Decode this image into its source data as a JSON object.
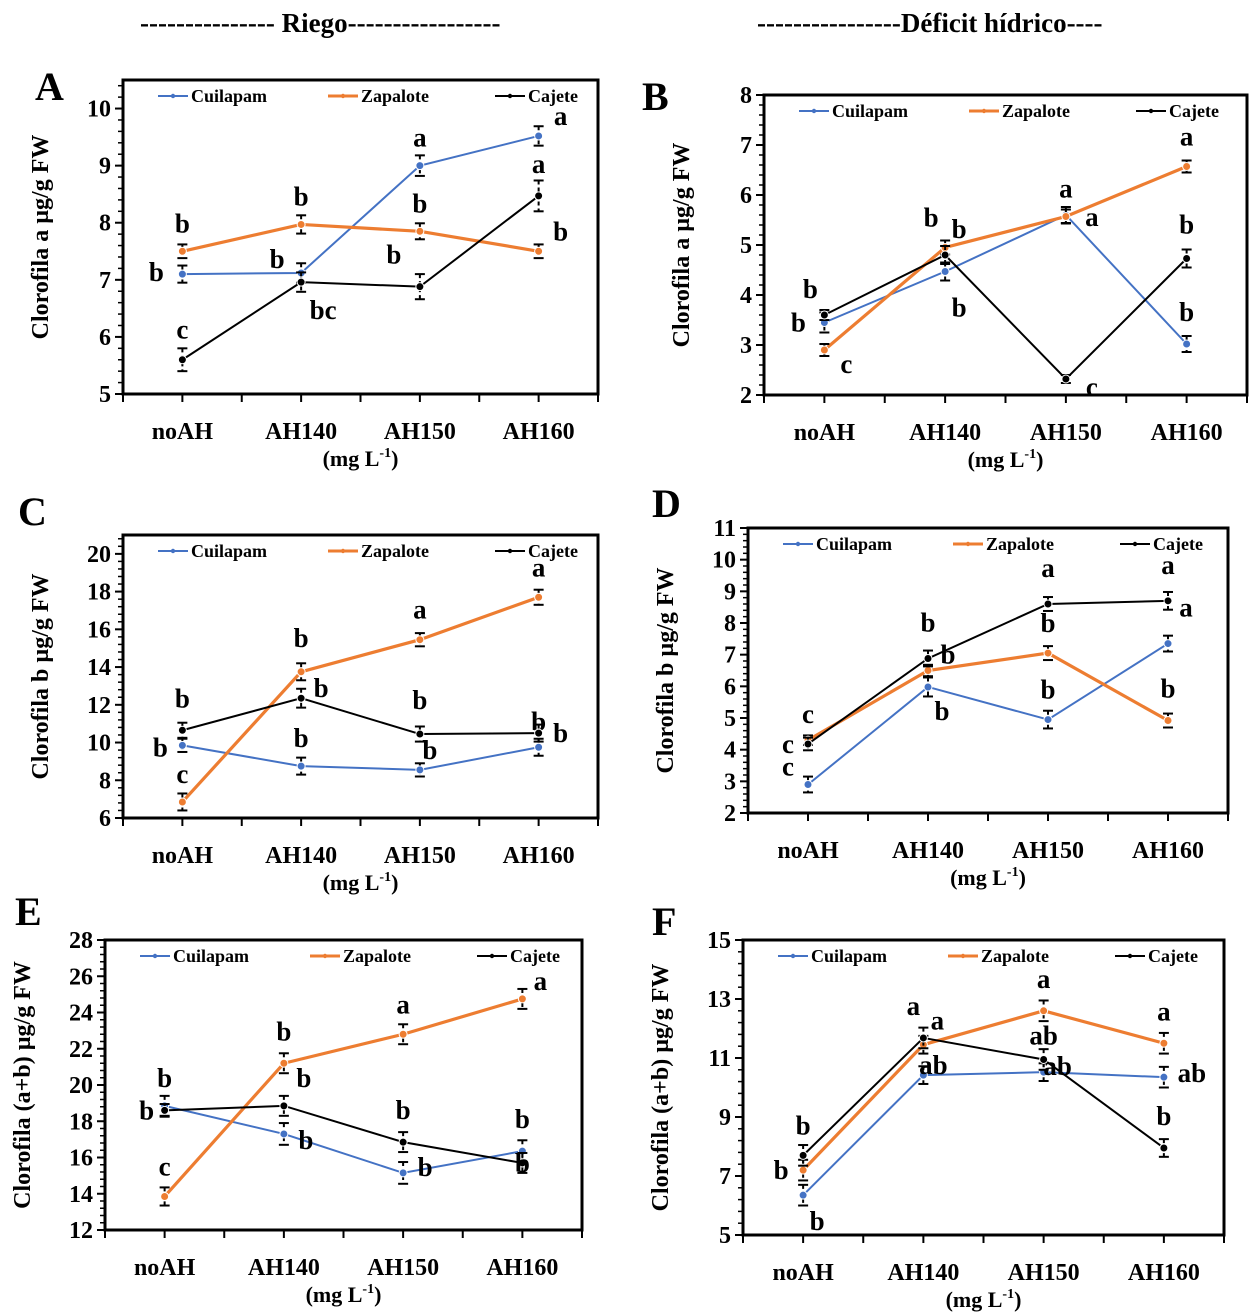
{
  "section_titles": {
    "left": "--------------- Riego-----------------",
    "right": "----------------Déficit hídrico----"
  },
  "colors": {
    "Cuilapam": "#4472C4",
    "Zapalote": "#ED7D31",
    "Cajete": "#000000"
  },
  "chart_data": [
    {
      "panel": "A",
      "type": "line",
      "group": "Riego",
      "ylabel": "Clorofila a µg/g FW",
      "xlabel": "(mg L-1)",
      "categories": [
        "noAH",
        "AH140",
        "AH150",
        "AH160"
      ],
      "ylim": [
        5,
        10.5
      ],
      "yticks": [
        5,
        6,
        7,
        8,
        9,
        10
      ],
      "legend": [
        "Cuilapam",
        "Zapalote",
        "Cajete"
      ],
      "legend_position": "top",
      "series": [
        {
          "name": "Cuilapam",
          "values": [
            7.1,
            7.12,
            9.0,
            9.52
          ],
          "errors": [
            0.15,
            0.17,
            0.18,
            0.17
          ],
          "letters": [
            "b",
            "b",
            "a",
            "a"
          ]
        },
        {
          "name": "Zapalote",
          "values": [
            7.5,
            7.97,
            7.85,
            7.5
          ],
          "errors": [
            0.12,
            0.16,
            0.14,
            0.12
          ],
          "letters": [
            "b",
            "b",
            "b",
            "b"
          ]
        },
        {
          "name": "Cajete",
          "values": [
            5.6,
            6.96,
            6.88,
            8.47
          ],
          "errors": [
            0.2,
            0.17,
            0.22,
            0.27
          ],
          "letters": [
            "c",
            "bc",
            "b",
            "a"
          ]
        }
      ]
    },
    {
      "panel": "B",
      "type": "line",
      "group": "Déficit hídrico",
      "ylabel": "Clorofila a µg/g FW",
      "xlabel": "(mg L-1)",
      "categories": [
        "noAH",
        "AH140",
        "AH150",
        "AH160"
      ],
      "ylim": [
        2,
        8
      ],
      "yticks": [
        2,
        3,
        4,
        5,
        6,
        7,
        8
      ],
      "legend": [
        "Cuilapam",
        "Zapalote",
        "Cajete"
      ],
      "legend_position": "top",
      "series": [
        {
          "name": "Cuilapam",
          "values": [
            3.45,
            4.47,
            5.6,
            3.02
          ],
          "errors": [
            0.2,
            0.18,
            0.16,
            0.16
          ],
          "letters": [
            "b",
            "b",
            "a",
            "b"
          ]
        },
        {
          "name": "Zapalote",
          "values": [
            2.9,
            4.95,
            5.57,
            6.57
          ],
          "errors": [
            0.12,
            0.14,
            0.14,
            0.12
          ],
          "letters": [
            "c",
            "b",
            "a",
            "a"
          ]
        },
        {
          "name": "Cajete",
          "values": [
            3.6,
            4.8,
            2.32,
            4.73
          ],
          "errors": [
            0.1,
            0.18,
            0.08,
            0.18
          ],
          "letters": [
            "b",
            "b",
            "c",
            "b"
          ]
        }
      ]
    },
    {
      "panel": "C",
      "type": "line",
      "group": "Riego",
      "ylabel": "Clorofila b µg/g FW",
      "xlabel": "(mg L-1)",
      "categories": [
        "noAH",
        "AH140",
        "AH150",
        "AH160"
      ],
      "ylim": [
        6,
        21
      ],
      "yticks": [
        6,
        8,
        10,
        12,
        14,
        16,
        18,
        20
      ],
      "legend": [
        "Cuilapam",
        "Zapalote",
        "Cajete"
      ],
      "legend_position": "top",
      "series": [
        {
          "name": "Cuilapam",
          "values": [
            9.85,
            8.75,
            8.55,
            9.75
          ],
          "errors": [
            0.35,
            0.45,
            0.35,
            0.45
          ],
          "letters": [
            "b",
            "b",
            "b",
            "b"
          ]
        },
        {
          "name": "Zapalote",
          "values": [
            6.85,
            13.75,
            15.45,
            17.7
          ],
          "errors": [
            0.45,
            0.45,
            0.35,
            0.4
          ],
          "letters": [
            "c",
            "b",
            "a",
            "a"
          ]
        },
        {
          "name": "Cajete",
          "values": [
            10.65,
            12.35,
            10.45,
            10.5
          ],
          "errors": [
            0.4,
            0.5,
            0.4,
            0.45
          ],
          "letters": [
            "b",
            "b",
            "b",
            "b"
          ]
        }
      ]
    },
    {
      "panel": "D",
      "type": "line",
      "group": "Déficit hídrico",
      "ylabel": "Clorofila b µg/g FW",
      "xlabel": "(mg L-1)",
      "categories": [
        "noAH",
        "AH140",
        "AH150",
        "AH160"
      ],
      "ylim": [
        2,
        11
      ],
      "yticks": [
        2,
        3,
        4,
        5,
        6,
        7,
        8,
        9,
        10,
        11
      ],
      "legend": [
        "Cuilapam",
        "Zapalote",
        "Cajete"
      ],
      "legend_position": "top",
      "series": [
        {
          "name": "Cuilapam",
          "values": [
            2.9,
            5.98,
            4.95,
            7.35
          ],
          "errors": [
            0.25,
            0.3,
            0.28,
            0.25
          ],
          "letters": [
            "c",
            "b",
            "b",
            "a"
          ]
        },
        {
          "name": "Zapalote",
          "values": [
            4.3,
            6.5,
            7.05,
            4.92
          ],
          "errors": [
            0.15,
            0.18,
            0.22,
            0.22
          ],
          "letters": [
            "c",
            "b",
            "b",
            "b"
          ]
        },
        {
          "name": "Cajete",
          "values": [
            4.18,
            6.88,
            8.6,
            8.7
          ],
          "errors": [
            0.2,
            0.25,
            0.22,
            0.28
          ],
          "letters": [
            "c",
            "b",
            "a",
            "a"
          ]
        }
      ]
    },
    {
      "panel": "E",
      "type": "line",
      "group": "Riego",
      "ylabel": "Clorofila (a+b) µg/g FW",
      "xlabel": "(mg L-1)",
      "categories": [
        "noAH",
        "AH140",
        "AH150",
        "AH160"
      ],
      "ylim": [
        12,
        28
      ],
      "yticks": [
        12,
        14,
        16,
        18,
        20,
        22,
        24,
        26,
        28
      ],
      "legend": [
        "Cuilapam",
        "Zapalote",
        "Cajete"
      ],
      "legend_position": "top",
      "series": [
        {
          "name": "Cuilapam",
          "values": [
            18.85,
            17.3,
            15.15,
            16.35
          ],
          "errors": [
            0.55,
            0.6,
            0.6,
            0.6
          ],
          "letters": [
            "b",
            "b",
            "b",
            "b"
          ]
        },
        {
          "name": "Zapalote",
          "values": [
            13.85,
            21.2,
            22.8,
            24.75
          ],
          "errors": [
            0.5,
            0.55,
            0.55,
            0.55
          ],
          "letters": [
            "c",
            "b",
            "a",
            "a"
          ]
        },
        {
          "name": "Cajete",
          "values": [
            18.6,
            18.85,
            16.85,
            15.7
          ],
          "errors": [
            0.35,
            0.55,
            0.55,
            0.55
          ],
          "letters": [
            "b",
            "b",
            "b",
            "b"
          ]
        }
      ]
    },
    {
      "panel": "F",
      "type": "line",
      "group": "Déficit hídrico",
      "ylabel": "Clorofila (a+b)  µg/g FW",
      "xlabel": "(mg L-1)",
      "categories": [
        "noAH",
        "AH140",
        "AH150",
        "AH160"
      ],
      "ylim": [
        5,
        15
      ],
      "yticks": [
        5,
        7,
        9,
        11,
        13,
        15
      ],
      "legend": [
        "Cuilapam",
        "Zapalote",
        "Cajete"
      ],
      "legend_position": "top",
      "series": [
        {
          "name": "Cuilapam",
          "values": [
            6.35,
            10.42,
            10.52,
            10.35
          ],
          "errors": [
            0.35,
            0.3,
            0.3,
            0.35
          ],
          "letters": [
            "b",
            "ab",
            "ab",
            "ab"
          ]
        },
        {
          "name": "Zapalote",
          "values": [
            7.2,
            11.45,
            12.6,
            11.5
          ],
          "errors": [
            0.35,
            0.3,
            0.35,
            0.35
          ],
          "letters": [
            "b",
            "a",
            "a",
            "a"
          ]
        },
        {
          "name": "Cajete",
          "values": [
            7.7,
            11.68,
            10.95,
            7.95
          ],
          "errors": [
            0.35,
            0.35,
            0.35,
            0.3
          ],
          "letters": [
            "b",
            "a",
            "ab",
            "b"
          ]
        }
      ]
    }
  ]
}
